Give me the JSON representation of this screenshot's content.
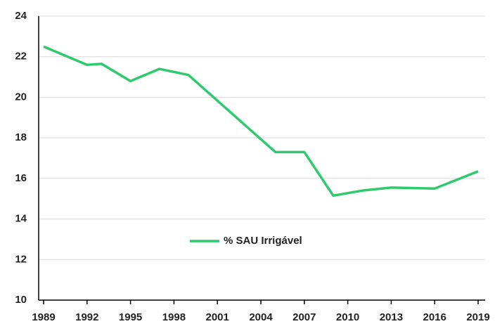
{
  "chart_data": {
    "type": "line",
    "x": [
      1989,
      1992,
      1993,
      1995,
      1997,
      1999,
      2005,
      2007,
      2009,
      2011,
      2013,
      2016,
      2019
    ],
    "series": [
      {
        "name": "% SAU Irrigável",
        "color": "#2fc96e",
        "values": [
          22.5,
          21.6,
          21.65,
          20.8,
          21.4,
          21.1,
          17.3,
          17.3,
          15.15,
          15.4,
          15.55,
          15.5,
          16.35
        ]
      }
    ],
    "xlim": [
      1989,
      2019
    ],
    "xticks": [
      1989,
      1992,
      1995,
      1998,
      2001,
      2004,
      2007,
      2010,
      2013,
      2016,
      2019
    ],
    "ylim": [
      10,
      24
    ],
    "yticks": [
      10,
      12,
      14,
      16,
      18,
      20,
      22,
      24
    ],
    "grid": true,
    "legend": "center"
  }
}
